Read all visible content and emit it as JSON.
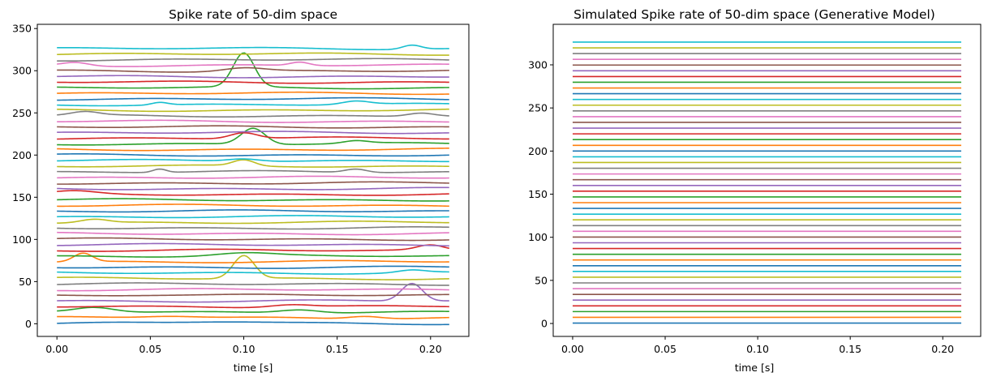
{
  "chart_data": [
    {
      "type": "line",
      "title": "Spike rate of 50-dim space",
      "xlabel": "time [s]",
      "ylabel": "",
      "xlim": [
        -0.0105,
        0.2205
      ],
      "ylim": [
        -15,
        355
      ],
      "xticks": [
        0.0,
        0.05,
        0.1,
        0.15,
        0.2
      ],
      "xtick_labels": [
        "0.00",
        "0.05",
        "0.10",
        "0.15",
        "0.20"
      ],
      "yticks": [
        0,
        50,
        100,
        150,
        200,
        250,
        300,
        350
      ],
      "ytick_labels": [
        "0",
        "50",
        "100",
        "150",
        "200",
        "250",
        "300",
        "350"
      ],
      "t_range": [
        0,
        0.21
      ],
      "num_series": 50,
      "series_spacing": 6.65,
      "bumps": [
        {
          "series": 0,
          "center": 0.09,
          "width": 0.03,
          "amp": 2
        },
        {
          "series": 1,
          "center": 0.06,
          "width": 0.02,
          "amp": 2
        },
        {
          "series": 1,
          "center": 0.165,
          "width": 0.012,
          "amp": 3
        },
        {
          "series": 2,
          "center": 0.02,
          "width": 0.015,
          "amp": 6
        },
        {
          "series": 2,
          "center": 0.13,
          "width": 0.015,
          "amp": 4
        },
        {
          "series": 3,
          "center": 0.125,
          "width": 0.015,
          "amp": 3
        },
        {
          "series": 4,
          "center": 0.19,
          "width": 0.008,
          "amp": 21
        },
        {
          "series": 5,
          "center": 0.05,
          "width": 0.03,
          "amp": 1
        },
        {
          "series": 8,
          "center": 0.1,
          "width": 0.008,
          "amp": 27
        },
        {
          "series": 9,
          "center": 0.19,
          "width": 0.01,
          "amp": 3
        },
        {
          "series": 11,
          "center": 0.014,
          "width": 0.007,
          "amp": 10
        },
        {
          "series": 12,
          "center": 0.1,
          "width": 0.02,
          "amp": 3
        },
        {
          "series": 13,
          "center": 0.2,
          "width": 0.01,
          "amp": 6
        },
        {
          "series": 18,
          "center": 0.02,
          "width": 0.01,
          "amp": 4
        },
        {
          "series": 23,
          "center": 0.01,
          "width": 0.015,
          "amp": 3
        },
        {
          "series": 27,
          "center": 0.055,
          "width": 0.005,
          "amp": 4
        },
        {
          "series": 27,
          "center": 0.16,
          "width": 0.008,
          "amp": 4
        },
        {
          "series": 28,
          "center": 0.1,
          "width": 0.008,
          "amp": 7
        },
        {
          "series": 29,
          "center": 0.1,
          "width": 0.012,
          "amp": 3
        },
        {
          "series": 32,
          "center": 0.105,
          "width": 0.009,
          "amp": 19
        },
        {
          "series": 32,
          "center": 0.16,
          "width": 0.009,
          "amp": 3
        },
        {
          "series": 33,
          "center": 0.1,
          "width": 0.01,
          "amp": 7
        },
        {
          "series": 37,
          "center": 0.015,
          "width": 0.01,
          "amp": 4
        },
        {
          "series": 37,
          "center": 0.195,
          "width": 0.01,
          "amp": 4
        },
        {
          "series": 39,
          "center": 0.16,
          "width": 0.01,
          "amp": 4
        },
        {
          "series": 39,
          "center": 0.055,
          "width": 0.006,
          "amp": 3
        },
        {
          "series": 42,
          "center": 0.1,
          "width": 0.008,
          "amp": 40
        },
        {
          "series": 45,
          "center": 0.1,
          "width": 0.015,
          "amp": 4
        },
        {
          "series": 46,
          "center": 0.01,
          "width": 0.01,
          "amp": 4
        },
        {
          "series": 46,
          "center": 0.13,
          "width": 0.007,
          "amp": 4
        },
        {
          "series": 49,
          "center": 0.19,
          "width": 0.007,
          "amp": 5
        }
      ]
    },
    {
      "type": "line",
      "title": "Simulated Spike rate of 50-dim space (Generative Model)",
      "xlabel": "time [s]",
      "ylabel": "",
      "xlim": [
        -0.0105,
        0.2205
      ],
      "ylim": [
        -15,
        347
      ],
      "xticks": [
        0.0,
        0.05,
        0.1,
        0.15,
        0.2
      ],
      "xtick_labels": [
        "0.00",
        "0.05",
        "0.10",
        "0.15",
        "0.20"
      ],
      "yticks": [
        0,
        50,
        100,
        150,
        200,
        250,
        300
      ],
      "ytick_labels": [
        "0",
        "50",
        "100",
        "150",
        "200",
        "250",
        "300"
      ],
      "t_range": [
        0,
        0.21
      ],
      "num_series": 50,
      "series_spacing": 6.65,
      "bumps": []
    }
  ],
  "palette": [
    "#1f77b4",
    "#ff7f0e",
    "#2ca02c",
    "#d62728",
    "#9467bd",
    "#8c564b",
    "#e377c2",
    "#7f7f7f",
    "#bcbd22",
    "#17becf"
  ]
}
